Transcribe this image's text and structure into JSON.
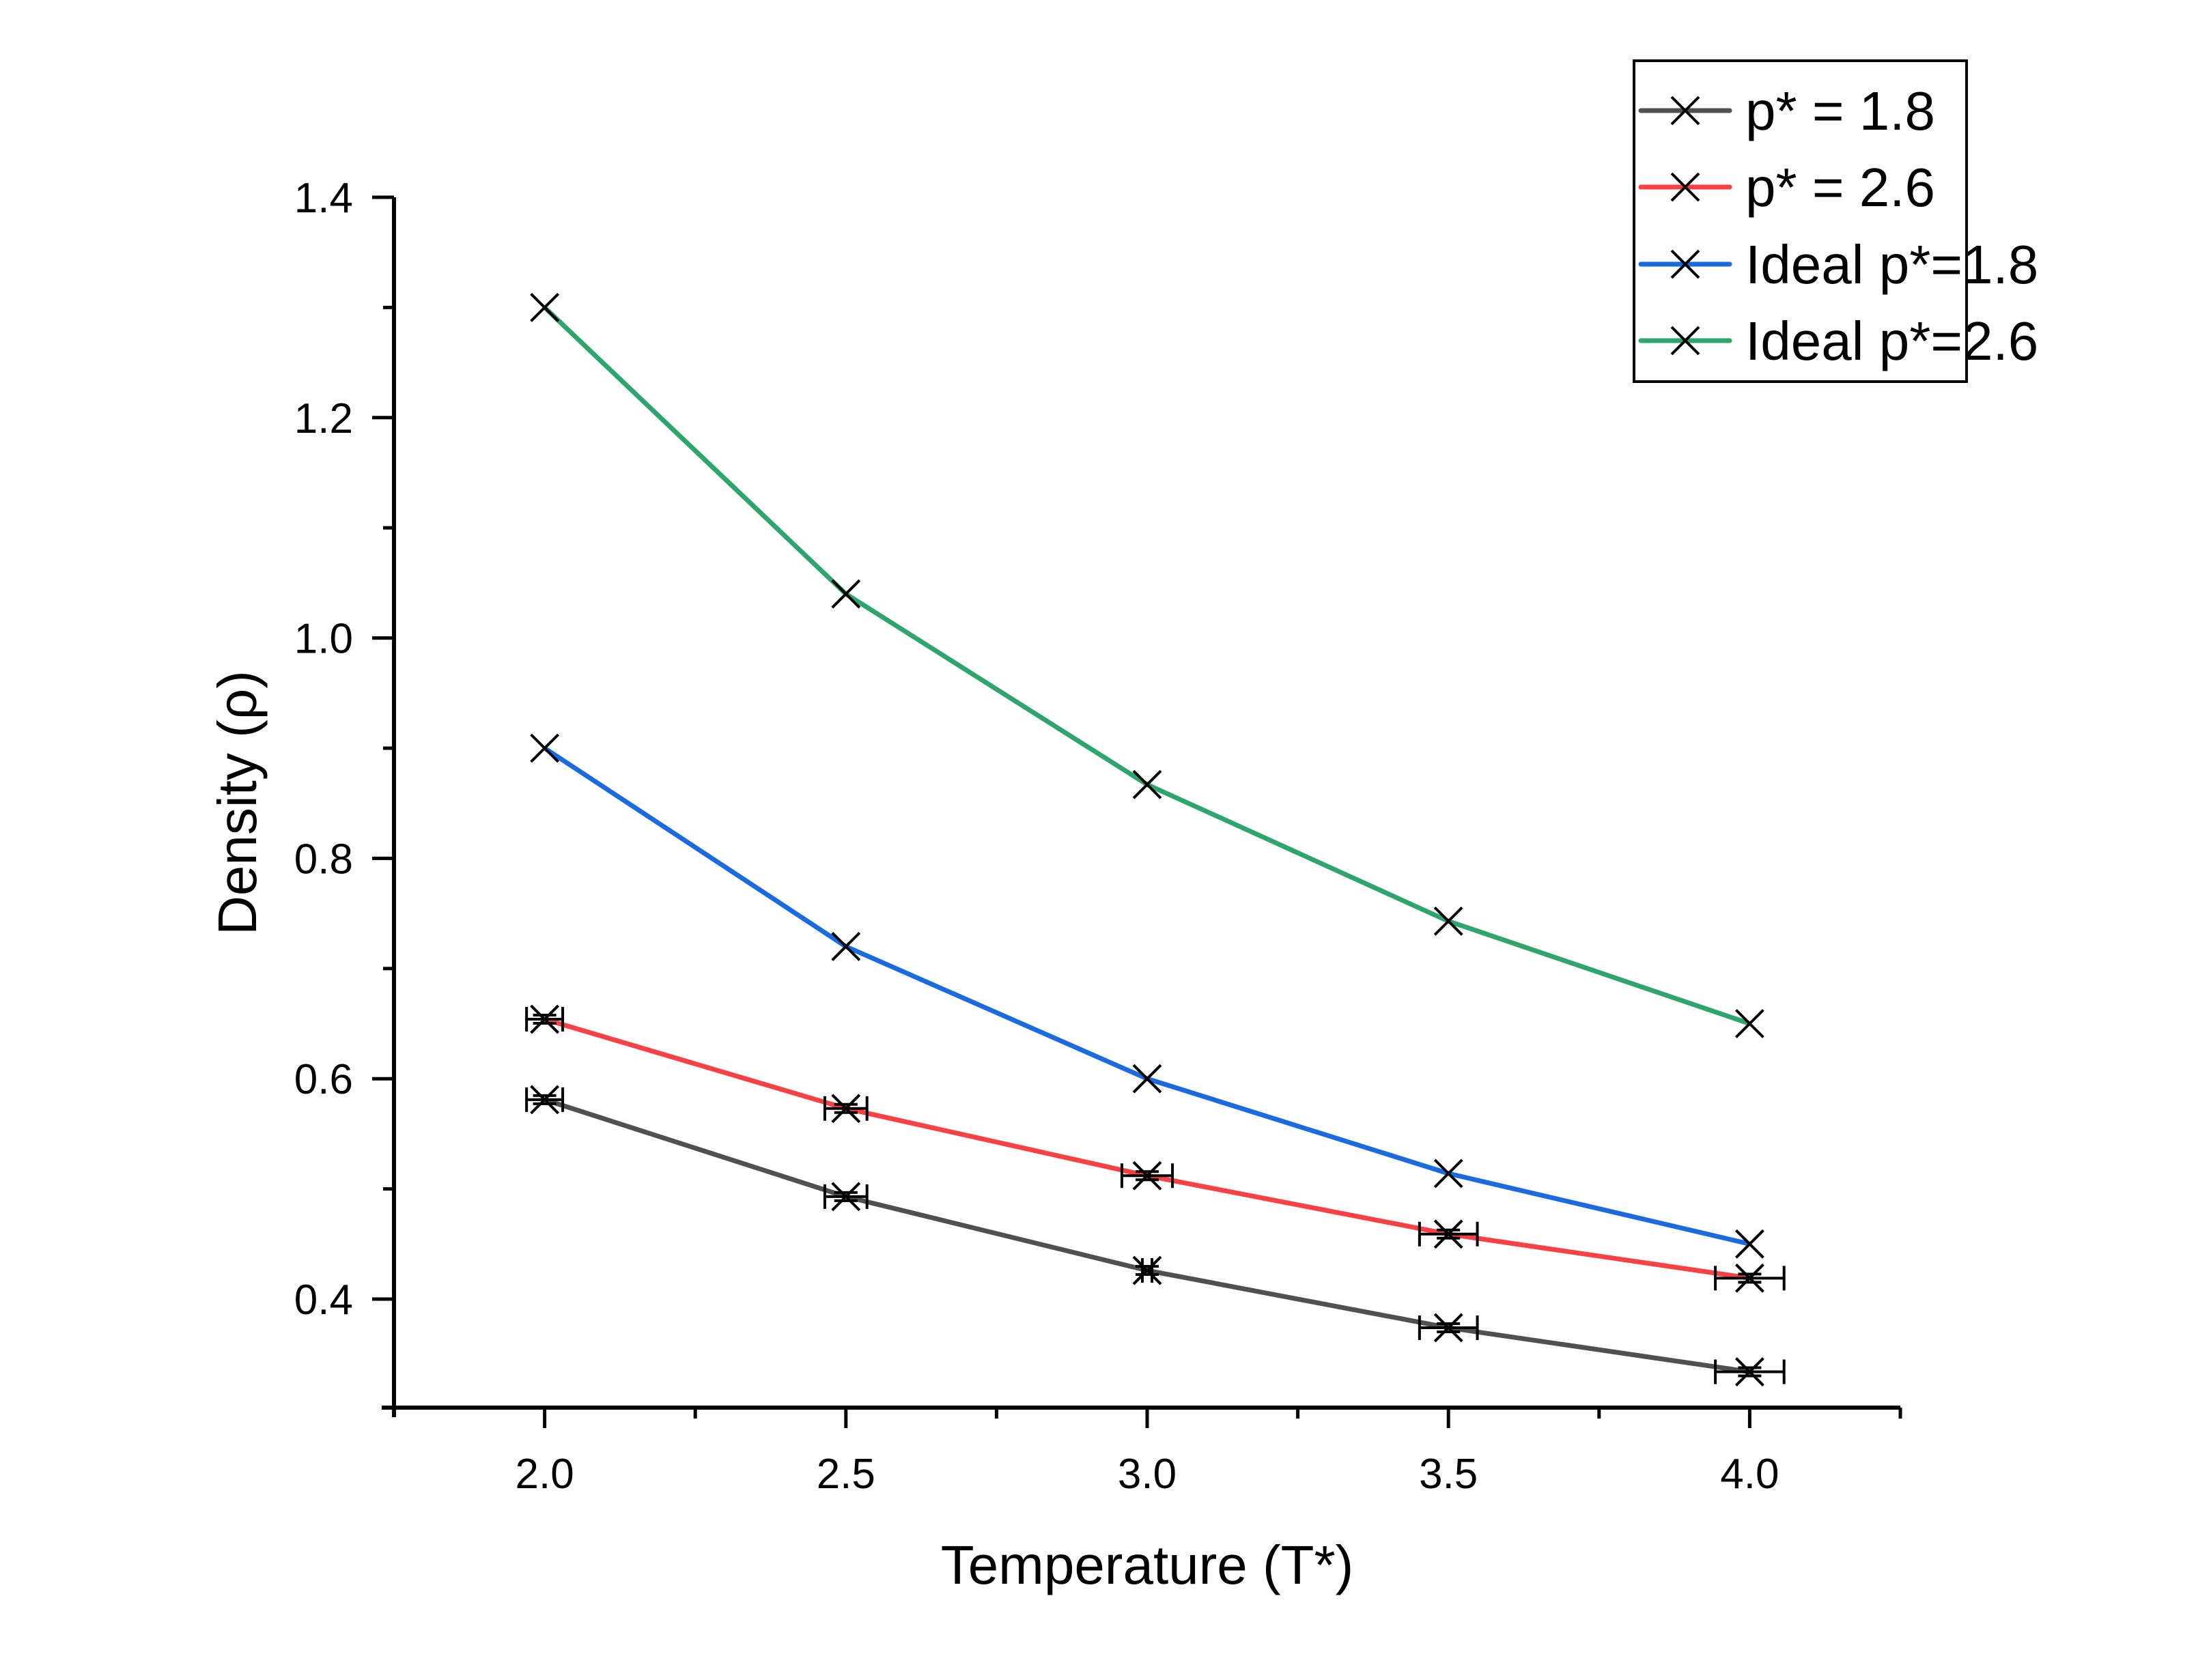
{
  "chart_data": {
    "type": "line",
    "title": "",
    "xlabel": "Temperature (T*)",
    "ylabel": "Density (ρ)",
    "xlim": [
      1.75,
      4.25
    ],
    "ylim": [
      0.3,
      1.4
    ],
    "x_ticks": [
      "2.0",
      "2.5",
      "3.0",
      "3.5",
      "4.0"
    ],
    "y_ticks": [
      "0.4",
      "0.6",
      "0.8",
      "1.0",
      "1.2",
      "1.4"
    ],
    "grid": false,
    "legend_position": "top-right",
    "x": [
      2.0,
      2.5,
      3.0,
      3.5,
      4.0
    ],
    "series": [
      {
        "name": "p* = 1.8",
        "color": "#505050",
        "marker": "x",
        "values": [
          0.581,
          0.493,
          0.426,
          0.374,
          0.334
        ],
        "x_error": [
          0.03,
          0.035,
          0.008,
          0.048,
          0.057
        ]
      },
      {
        "name": "p* = 2.6",
        "color": "#f94144",
        "marker": "x",
        "values": [
          0.654,
          0.573,
          0.512,
          0.459,
          0.419
        ],
        "x_error": [
          0.03,
          0.035,
          0.042,
          0.048,
          0.057
        ]
      },
      {
        "name": "Ideal p*=1.8",
        "color": "#1a6ae0",
        "marker": "x",
        "values": [
          0.9,
          0.72,
          0.6,
          0.514,
          0.45
        ]
      },
      {
        "name": "Ideal p*=2.6",
        "color": "#2ea56a",
        "marker": "x",
        "values": [
          1.3,
          1.04,
          0.867,
          0.743,
          0.65
        ]
      }
    ]
  }
}
